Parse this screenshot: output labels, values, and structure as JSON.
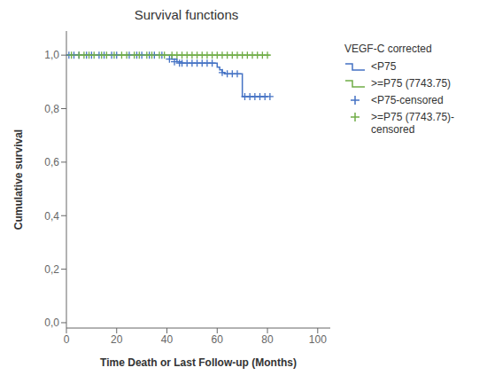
{
  "chart_data": {
    "type": "line",
    "title": "Survival functions",
    "x_label": "Time Death or Last Follow-up (Months)",
    "y_label": "Cumulative survival",
    "legend_title": "VEGF-C corrected",
    "legend": "right",
    "grid": false,
    "xlim": [
      0,
      105
    ],
    "ylim": [
      -0.02,
      1.09
    ],
    "xticks": [
      0,
      20,
      40,
      60,
      80,
      100
    ],
    "yticks": [
      {
        "value": 0.0,
        "label": "0,0"
      },
      {
        "value": 0.2,
        "label": "0,2"
      },
      {
        "value": 0.4,
        "label": "0,4"
      },
      {
        "value": 0.6,
        "label": "0,6"
      },
      {
        "value": 0.8,
        "label": "0,8"
      },
      {
        "value": 1.0,
        "label": "1,0"
      }
    ],
    "series": [
      {
        "name": "<P75",
        "type": "step",
        "color": "#4472C4",
        "x": [
          0,
          40,
          42,
          44,
          46,
          47,
          48,
          50,
          52,
          54,
          56,
          58,
          59,
          60,
          61,
          62,
          63,
          64,
          65,
          66,
          67,
          68,
          69,
          70,
          80
        ],
        "values": [
          1.0,
          1.0,
          0.985,
          0.975,
          0.97,
          0.97,
          0.97,
          0.97,
          0.97,
          0.97,
          0.97,
          0.97,
          0.97,
          0.955,
          0.945,
          0.935,
          0.93,
          0.93,
          0.93,
          0.93,
          0.93,
          0.93,
          0.93,
          0.845,
          0.845
        ]
      },
      {
        "name": ">=P75 (7743.75)",
        "type": "step",
        "color": "#70AD47",
        "x": [
          0,
          81
        ],
        "values": [
          1.0,
          1.0
        ]
      },
      {
        "name": "<P75-censored",
        "type": "scatter",
        "marker": "plus",
        "color": "#4472C4",
        "x": [
          1,
          3,
          5,
          8,
          10,
          13,
          15,
          18,
          20,
          25,
          28,
          30,
          33,
          35,
          38,
          41,
          43,
          45,
          46,
          48,
          50,
          52,
          54,
          56,
          58,
          62,
          64,
          66,
          68,
          71,
          73,
          75,
          77,
          79,
          81
        ],
        "values": [
          1.0,
          1.0,
          1.0,
          1.0,
          1.0,
          1.0,
          1.0,
          1.0,
          1.0,
          1.0,
          1.0,
          1.0,
          1.0,
          1.0,
          1.0,
          0.985,
          0.975,
          0.97,
          0.97,
          0.97,
          0.97,
          0.97,
          0.97,
          0.97,
          0.97,
          0.935,
          0.93,
          0.93,
          0.93,
          0.845,
          0.845,
          0.845,
          0.845,
          0.845,
          0.845
        ]
      },
      {
        "name": ">=P75 (7743.75)-\ncensored",
        "type": "scatter",
        "marker": "plus",
        "color": "#70AD47",
        "x": [
          2,
          5,
          7,
          9,
          11,
          14,
          16,
          19,
          22,
          24,
          27,
          29,
          32,
          34,
          37,
          39,
          42,
          44,
          46,
          48,
          50,
          52,
          54,
          56,
          58,
          60,
          62,
          64,
          66,
          68,
          70,
          72,
          74,
          76,
          78,
          80
        ],
        "values": [
          1.0,
          1.0,
          1.0,
          1.0,
          1.0,
          1.0,
          1.0,
          1.0,
          1.0,
          1.0,
          1.0,
          1.0,
          1.0,
          1.0,
          1.0,
          1.0,
          1.0,
          1.0,
          1.0,
          1.0,
          1.0,
          1.0,
          1.0,
          1.0,
          1.0,
          1.0,
          1.0,
          1.0,
          1.0,
          1.0,
          1.0,
          1.0,
          1.0,
          1.0,
          1.0,
          1.0
        ]
      }
    ]
  }
}
